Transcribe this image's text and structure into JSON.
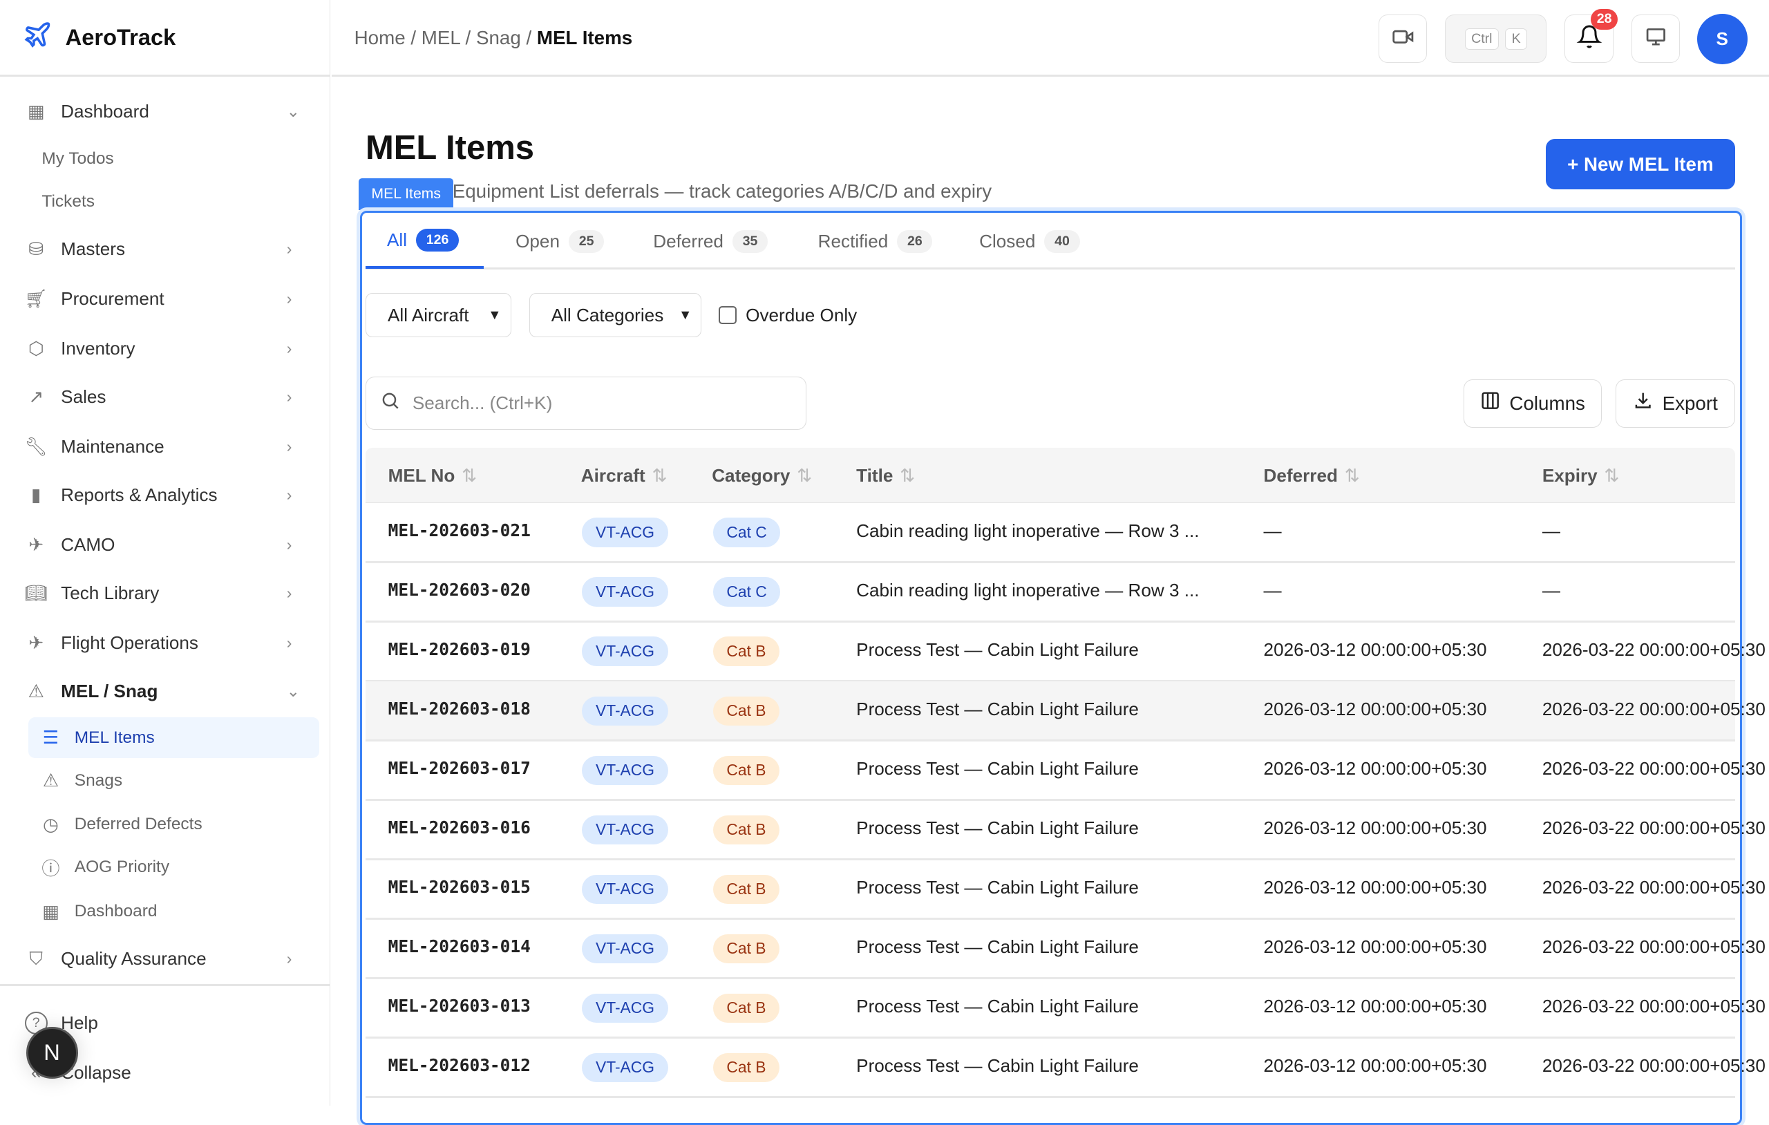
{
  "app": {
    "name": "AeroTrack",
    "brand_color": "#2563eb"
  },
  "breadcrumb": {
    "items": [
      "Home",
      "MEL / Snag"
    ],
    "current": "MEL Items"
  },
  "topbar": {
    "shortcut_keys": [
      "Ctrl",
      "K"
    ],
    "notification_count": "28",
    "avatar_initial": "S"
  },
  "sidebar": {
    "items": [
      {
        "label": "Dashboard",
        "icon": "grid-icon",
        "chevron": "⌄",
        "type": "top"
      },
      {
        "label": "My Todos",
        "type": "plain"
      },
      {
        "label": "Tickets",
        "type": "plain"
      },
      {
        "label": "Masters",
        "icon": "database-icon",
        "chevron": "›",
        "type": "top"
      },
      {
        "label": "Procurement",
        "icon": "cart-icon",
        "chevron": "›",
        "type": "top"
      },
      {
        "label": "Inventory",
        "icon": "box-icon",
        "chevron": "›",
        "type": "top"
      },
      {
        "label": "Sales",
        "icon": "trending-up-icon",
        "chevron": "›",
        "type": "top"
      },
      {
        "label": "Maintenance",
        "icon": "wrench-icon",
        "chevron": "›",
        "type": "top"
      },
      {
        "label": "Reports & Analytics",
        "icon": "bar-chart-icon",
        "chevron": "›",
        "type": "top"
      },
      {
        "label": "CAMO",
        "icon": "plane-icon",
        "chevron": "›",
        "type": "top"
      },
      {
        "label": "Tech Library",
        "icon": "book-icon",
        "chevron": "›",
        "type": "top"
      },
      {
        "label": "Flight Operations",
        "icon": "takeoff-icon",
        "chevron": "›",
        "type": "top"
      },
      {
        "label": "MEL / Snag",
        "icon": "warning-icon",
        "chevron": "⌄",
        "type": "top",
        "bold": true
      },
      {
        "label": "MEL Items",
        "icon": "list-icon",
        "type": "sub",
        "active": true
      },
      {
        "label": "Snags",
        "icon": "warning-icon",
        "type": "sub"
      },
      {
        "label": "Deferred Defects",
        "icon": "clock-icon",
        "type": "sub"
      },
      {
        "label": "AOG Priority",
        "icon": "alert-circle-icon",
        "type": "sub"
      },
      {
        "label": "Dashboard",
        "icon": "grid-icon",
        "type": "sub"
      },
      {
        "label": "Quality Assurance",
        "icon": "shield-icon",
        "chevron": "›",
        "type": "top"
      }
    ],
    "footer": {
      "help": "Help",
      "collapse": "Collapse"
    },
    "floating_badge": "N"
  },
  "page": {
    "title": "MEL Items",
    "tag": "MEL Items",
    "subtitle": "Equipment List deferrals — track categories A/B/C/D and expiry",
    "new_button": "+ New MEL Item"
  },
  "tabs": [
    {
      "label": "All",
      "count": "126",
      "active": true
    },
    {
      "label": "Open",
      "count": "25"
    },
    {
      "label": "Deferred",
      "count": "35"
    },
    {
      "label": "Rectified",
      "count": "26"
    },
    {
      "label": "Closed",
      "count": "40"
    }
  ],
  "filters": {
    "aircraft": "All Aircraft",
    "category": "All Categories",
    "overdue_label": "Overdue Only",
    "overdue_checked": false
  },
  "search": {
    "placeholder": "Search... (Ctrl+K)"
  },
  "toolbar": {
    "columns": "Columns",
    "export": "Export"
  },
  "table": {
    "columns": [
      "MEL No",
      "Aircraft",
      "Category",
      "Title",
      "Deferred",
      "Expiry"
    ],
    "rows": [
      {
        "mel_no": "MEL-202603-021",
        "aircraft": "VT-ACG",
        "category": "Cat C",
        "title": "Cabin reading light inoperative — Row 3 ...",
        "deferred": "—",
        "expiry": "—"
      },
      {
        "mel_no": "MEL-202603-020",
        "aircraft": "VT-ACG",
        "category": "Cat C",
        "title": "Cabin reading light inoperative — Row 3 ...",
        "deferred": "—",
        "expiry": "—"
      },
      {
        "mel_no": "MEL-202603-019",
        "aircraft": "VT-ACG",
        "category": "Cat B",
        "title": "Process Test — Cabin Light Failure",
        "deferred": "2026-03-12 00:00:00+05:30",
        "expiry": "2026-03-22 00:00:00+05:30"
      },
      {
        "mel_no": "MEL-202603-018",
        "aircraft": "VT-ACG",
        "category": "Cat B",
        "title": "Process Test — Cabin Light Failure",
        "deferred": "2026-03-12 00:00:00+05:30",
        "expiry": "2026-03-22 00:00:00+05:30",
        "hover": true
      },
      {
        "mel_no": "MEL-202603-017",
        "aircraft": "VT-ACG",
        "category": "Cat B",
        "title": "Process Test — Cabin Light Failure",
        "deferred": "2026-03-12 00:00:00+05:30",
        "expiry": "2026-03-22 00:00:00+05:30"
      },
      {
        "mel_no": "MEL-202603-016",
        "aircraft": "VT-ACG",
        "category": "Cat B",
        "title": "Process Test — Cabin Light Failure",
        "deferred": "2026-03-12 00:00:00+05:30",
        "expiry": "2026-03-22 00:00:00+05:30"
      },
      {
        "mel_no": "MEL-202603-015",
        "aircraft": "VT-ACG",
        "category": "Cat B",
        "title": "Process Test — Cabin Light Failure",
        "deferred": "2026-03-12 00:00:00+05:30",
        "expiry": "2026-03-22 00:00:00+05:30"
      },
      {
        "mel_no": "MEL-202603-014",
        "aircraft": "VT-ACG",
        "category": "Cat B",
        "title": "Process Test — Cabin Light Failure",
        "deferred": "2026-03-12 00:00:00+05:30",
        "expiry": "2026-03-22 00:00:00+05:30"
      },
      {
        "mel_no": "MEL-202603-013",
        "aircraft": "VT-ACG",
        "category": "Cat B",
        "title": "Process Test — Cabin Light Failure",
        "deferred": "2026-03-12 00:00:00+05:30",
        "expiry": "2026-03-22 00:00:00+05:30"
      },
      {
        "mel_no": "MEL-202603-012",
        "aircraft": "VT-ACG",
        "category": "Cat B",
        "title": "Process Test — Cabin Light Failure",
        "deferred": "2026-03-12 00:00:00+05:30",
        "expiry": "2026-03-22 00:00:00+05:30"
      }
    ]
  }
}
